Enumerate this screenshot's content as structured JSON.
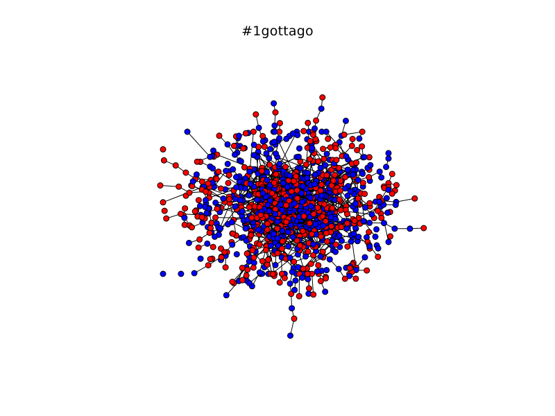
{
  "figure": {
    "title": "#1gottago"
  },
  "graph": {
    "node_colors": [
      "#ff0000",
      "#0000ff"
    ],
    "node_outline_color": "#000000",
    "edge_color": "#000000",
    "description_kind": "network graph (force-directed layout), node groups colored red and blue"
  }
}
